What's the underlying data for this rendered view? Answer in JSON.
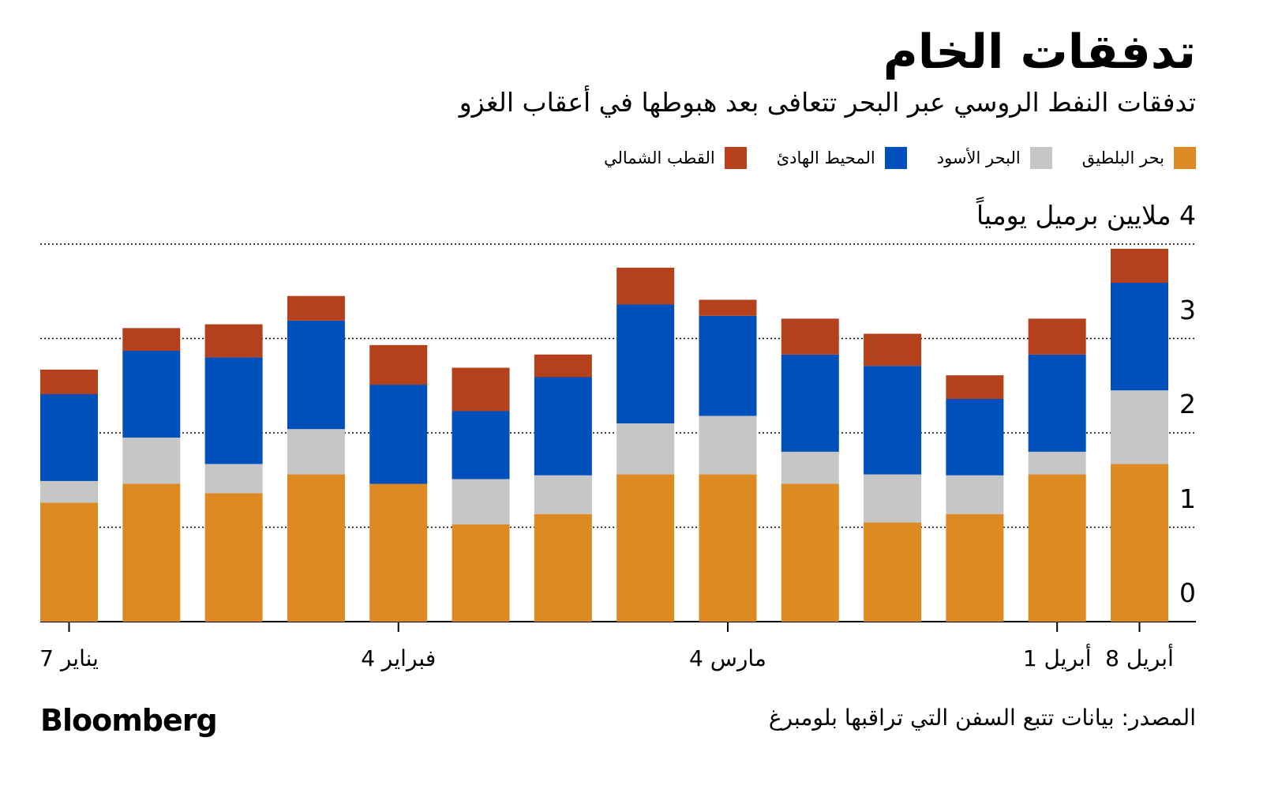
{
  "chart_data": {
    "type": "stacked-bar",
    "title": "تدفقات الخام",
    "subtitle": "تدفقات النفط الروسي عبر البحر تتعافى بعد هبوطها في أعقاب الغزو",
    "categories": [
      "يناير 7",
      null,
      null,
      null,
      "فبراير 4",
      null,
      null,
      null,
      "مارس 4",
      null,
      null,
      null,
      "أبريل 1",
      "أبريل 8"
    ],
    "series": [
      {
        "name": "بحر البلطيق",
        "color": "#dd8a23",
        "values": [
          1.26,
          1.46,
          1.36,
          1.56,
          1.46,
          1.03,
          1.14,
          1.56,
          1.56,
          1.46,
          1.05,
          1.14,
          1.56,
          1.67
        ]
      },
      {
        "name": "البحر الأسود",
        "color": "#c6c6c6",
        "values": [
          0.23,
          0.49,
          0.31,
          0.48,
          0,
          0.48,
          0.41,
          0.54,
          0.62,
          0.34,
          0.51,
          0.41,
          0.24,
          0.78
        ]
      },
      {
        "name": "المحيط الهادئ",
        "color": "#0050bb",
        "values": [
          0.92,
          0.92,
          1.13,
          1.15,
          1.05,
          0.72,
          1.04,
          1.26,
          1.06,
          1.03,
          1.15,
          0.81,
          1.03,
          1.14
        ]
      },
      {
        "name": "القطب الشمالي",
        "color": "#b5401c",
        "values": [
          0.26,
          0.24,
          0.35,
          0.26,
          0.42,
          0.46,
          0.24,
          0.39,
          0.17,
          0.38,
          0.34,
          0.25,
          0.38,
          0.36
        ]
      }
    ],
    "ylim": [
      0,
      4
    ],
    "yticks": [
      0,
      1,
      2,
      3,
      {
        "value": 4,
        "label": "4 ملايين برميل يومياً"
      }
    ],
    "grid": true,
    "source": "المصدر: بيانات تتبع السفن التي تراقبها بلومبرغ",
    "brand": "Bloomberg"
  }
}
